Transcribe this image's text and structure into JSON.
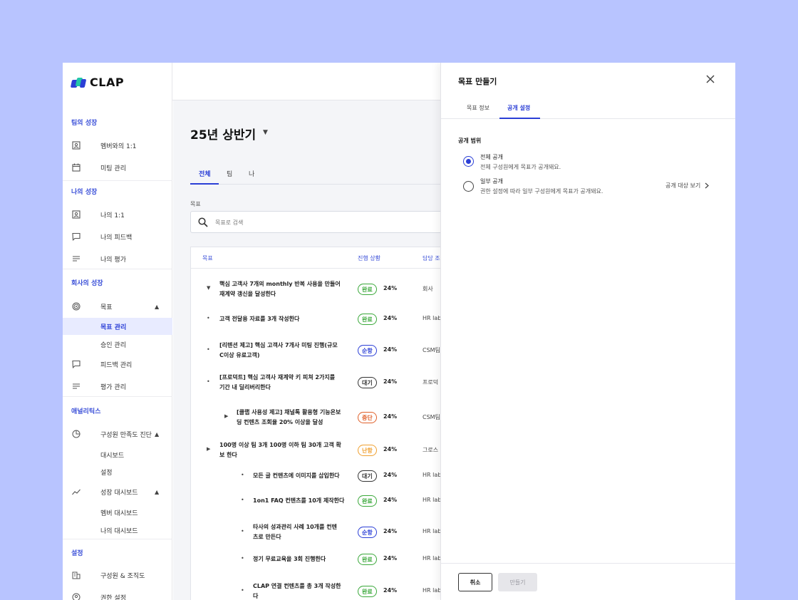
{
  "brand": {
    "name": "CLAP",
    "colors": {
      "accent": "#2b3fd6",
      "logo_green": "#22c7a9",
      "logo_blue": "#2b3fd6",
      "background": "#b8c4ff"
    }
  },
  "sidebar": {
    "sections": [
      {
        "title": "팀의 성장",
        "items": [
          {
            "label": "멤버와의 1:1",
            "icon": "id-badge-icon"
          },
          {
            "label": "미팅 관리",
            "icon": "calendar-icon"
          }
        ]
      },
      {
        "title": "나의 성장",
        "items": [
          {
            "label": "나의 1:1",
            "icon": "id-badge-icon"
          },
          {
            "label": "나의 피드백",
            "icon": "chat-bubble-icon"
          },
          {
            "label": "나의 평가",
            "icon": "list-lines-icon"
          }
        ]
      },
      {
        "title": "회사의 성장",
        "items": [
          {
            "label": "목표",
            "icon": "target-icon"
          },
          {
            "label": "목표 관리"
          },
          {
            "label": "승인 관리"
          },
          {
            "label": "피드백 관리",
            "icon": "chat-bubble-icon"
          },
          {
            "label": "평가 관리",
            "icon": "list-lines-icon"
          }
        ]
      },
      {
        "title": "애널리틱스",
        "items": [
          {
            "label": "구성원 만족도 진단",
            "icon": "pie-chart-icon"
          },
          {
            "label": "대시보드"
          },
          {
            "label": "설정"
          },
          {
            "label": "성장 대시보드",
            "icon": "trend-line-icon"
          },
          {
            "label": "멤버 대시보드"
          },
          {
            "label": "나의 대시보드"
          }
        ]
      },
      {
        "title": "설정",
        "items": [
          {
            "label": "구성원 & 조직도",
            "icon": "building-icon"
          },
          {
            "label": "권한 설정",
            "icon": "shield-icon"
          }
        ]
      }
    ]
  },
  "main": {
    "period": "25년 상반기",
    "tabs": [
      "전체",
      "팀",
      "나"
    ],
    "search": {
      "label": "목표",
      "placeholder": "목표로 검색"
    },
    "table": {
      "headers": [
        "목표",
        "진행 상황",
        "담당 조"
      ],
      "rows": [
        {
          "title": [
            "핵심 고객사 7개의 monthly 반복 사용을 만들어",
            "재계약 갱신을 달성한다"
          ],
          "status": "완료",
          "progress": "24%",
          "owner": "회사",
          "indent": 0,
          "marker": "caret-down"
        },
        {
          "title": [
            "고객 전달용 자료를 3개 작성한다"
          ],
          "status": "완료",
          "progress": "24%",
          "owner": "HR lab",
          "indent": 0,
          "marker": "dot"
        },
        {
          "title": [
            "[리텐션 제고] 핵심 고객사 7개사 미팅 진행(규모",
            "C이상 유료고객)"
          ],
          "status": "순항",
          "progress": "24%",
          "owner": "CSM팀",
          "indent": 0,
          "marker": "dot"
        },
        {
          "title": [
            "[프로덕트] 핵심 고객사 재계약 키 피쳐 2가지를",
            "기간 내 딜리버리한다"
          ],
          "status": "대기",
          "progress": "24%",
          "owner": "프로덕",
          "indent": 0,
          "marker": "dot"
        },
        {
          "title": [
            "[클랩 사용성 제고] 채널톡 활용형 기능온보",
            "딩 컨텐츠 조회율 20% 이상을 달성"
          ],
          "status": "중단",
          "progress": "24%",
          "owner": "CSM팀",
          "indent": 1,
          "marker": "caret-right"
        },
        {
          "title": [
            "100명 이상 팀 3개 100명 이하 팀 30개 고객 확",
            "보 한다"
          ],
          "status": "난항",
          "progress": "24%",
          "owner": "그로스",
          "indent": 0,
          "marker": "caret-right"
        },
        {
          "title": [
            "모든 글 컨텐츠에 이미지를 삽입한다"
          ],
          "status": "대기",
          "progress": "24%",
          "owner": "HR lab",
          "indent": 2,
          "marker": "dot"
        },
        {
          "title": [
            "1on1 FAQ 컨텐츠를 10개 제작한다"
          ],
          "status": "완료",
          "progress": "24%",
          "owner": "HR lab",
          "indent": 2,
          "marker": "dot"
        },
        {
          "title": [
            "타사의 성과관리 사례 10개를 컨텐",
            "츠로 만든다"
          ],
          "status": "순항",
          "progress": "24%",
          "owner": "HR lab",
          "indent": 2,
          "marker": "dot"
        },
        {
          "title": [
            "정기 무료교육을 3회 진행한다"
          ],
          "status": "완료",
          "progress": "24%",
          "owner": "HR lab",
          "indent": 2,
          "marker": "dot"
        },
        {
          "title": [
            "CLAP 연결 컨텐츠를 총 3개 작성한",
            "다"
          ],
          "status": "완료",
          "progress": "24%",
          "owner": "HR lab",
          "indent": 2,
          "marker": "dot"
        }
      ]
    },
    "status_colors": {
      "완료": "#3aa83a",
      "순항": "#2b3fd6",
      "대기": "#333333",
      "중단": "#e0602a",
      "난항": "#f0a030"
    }
  },
  "panel": {
    "title": "목표 만들기",
    "tabs": [
      "목표 정보",
      "공개 설정"
    ],
    "scope_label": "공개 범위",
    "options": [
      {
        "title": "전체 공개",
        "desc": "전체 구성원에게 목표가 공개돼요.",
        "selected": true
      },
      {
        "title": "일부 공개",
        "desc": "권한 설정에 따라 일부 구성원에게 목표가 공개돼요.",
        "selected": false
      }
    ],
    "view_target": "공개 대상 보기",
    "cancel": "취소",
    "create": "만들기"
  }
}
